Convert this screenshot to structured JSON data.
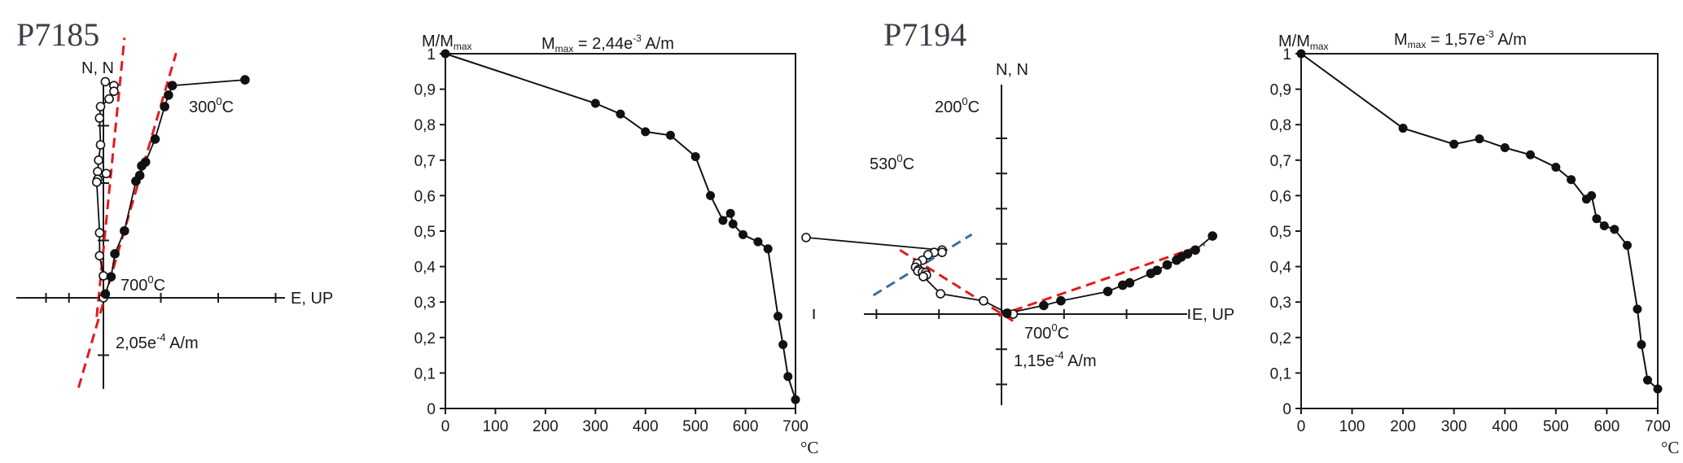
{
  "chart_data": [
    {
      "type": "scatter",
      "title": "P7185",
      "panel": "zijderveld",
      "labels": {
        "n_axis": "N, N",
        "e_axis": "E, UP",
        "temp_upper": "300",
        "temp_lower": "700",
        "temp_unit": "C",
        "degree_mark": "0",
        "scale_base": "2,05e",
        "scale_exp": "-4",
        "scale_unit": " A/m"
      },
      "series": [
        {
          "projection": "horizontal",
          "marker": "open",
          "points": [
            [
              0.1,
              11.3
            ],
            [
              0.55,
              11.1
            ],
            [
              0.55,
              10.8
            ],
            [
              0.3,
              10.4
            ],
            [
              -0.15,
              10.0
            ],
            [
              -0.2,
              9.4
            ],
            [
              -0.15,
              8.0
            ],
            [
              -0.25,
              7.2
            ],
            [
              -0.3,
              6.6
            ],
            [
              0.15,
              6.5
            ],
            [
              -0.3,
              6.2
            ],
            [
              -0.35,
              6.05
            ],
            [
              -0.2,
              3.4
            ],
            [
              -0.2,
              2.2
            ],
            [
              0.0,
              1.15
            ],
            [
              0.0,
              0.0
            ]
          ]
        },
        {
          "projection": "vertical",
          "marker": "filled",
          "points": [
            [
              7.4,
              11.4
            ],
            [
              3.6,
              11.1
            ],
            [
              3.4,
              10.6
            ],
            [
              3.2,
              10.0
            ],
            [
              2.7,
              8.3
            ],
            [
              2.2,
              7.1
            ],
            [
              2.0,
              6.9
            ],
            [
              1.9,
              6.4
            ],
            [
              1.7,
              6.1
            ],
            [
              1.1,
              3.5
            ],
            [
              0.6,
              2.3
            ],
            [
              0.4,
              1.1
            ],
            [
              0.1,
              0.2
            ]
          ]
        }
      ],
      "fit_lines": [
        {
          "color": "#e41a1c",
          "from": [
            -1.3,
            -4.7
          ],
          "to": [
            3.8,
            12.8
          ]
        },
        {
          "color": "#e41a1c",
          "from": [
            -0.35,
            -1.0
          ],
          "to": [
            1.1,
            13.6
          ]
        }
      ]
    },
    {
      "type": "line",
      "panel": "demagnetization",
      "ylabel_base": "M/M",
      "ylabel_sub": "max",
      "mmax": {
        "base": "M",
        "sub": "max",
        "eq": " = 2,44e",
        "exp": "-3",
        "unit": " A/m"
      },
      "xunit": "°C",
      "xlim": [
        0,
        700
      ],
      "ylim": [
        0,
        1
      ],
      "xticks": [
        "0",
        "100",
        "200",
        "300",
        "400",
        "500",
        "600",
        "700"
      ],
      "yticks": [
        "0",
        "0,1",
        "0,2",
        "0,3",
        "0,4",
        "0,5",
        "0,6",
        "0,7",
        "0,8",
        "0,9",
        "1"
      ],
      "x": [
        0,
        300,
        350,
        400,
        450,
        500,
        530,
        555,
        570,
        575,
        595,
        625,
        645,
        665,
        675,
        685,
        700
      ],
      "y": [
        1.0,
        0.86,
        0.83,
        0.78,
        0.77,
        0.71,
        0.6,
        0.53,
        0.55,
        0.52,
        0.49,
        0.47,
        0.45,
        0.26,
        0.18,
        0.09,
        0.025
      ]
    },
    {
      "type": "scatter",
      "title": "P7194",
      "panel": "zijderveld",
      "labels": {
        "n_axis": "N, N",
        "e_axis": "E, UP",
        "temp_upper": "200",
        "temp_mid": "530",
        "temp_lower": "700",
        "temp_unit": "C",
        "degree_mark": "0",
        "scale_base": "1,15e",
        "scale_exp": "-4",
        "scale_unit": " A/m"
      },
      "series": [
        {
          "projection": "horizontal",
          "marker": "open",
          "points": [
            [
              -12.5,
              4.9
            ],
            [
              -3.8,
              4.1
            ],
            [
              -3.8,
              3.95
            ],
            [
              -4.3,
              3.95
            ],
            [
              -4.7,
              3.8
            ],
            [
              -5.05,
              3.45
            ],
            [
              -5.4,
              3.25
            ],
            [
              -5.5,
              3.0
            ],
            [
              -5.3,
              2.85
            ],
            [
              -5.35,
              2.75
            ],
            [
              -5.05,
              2.7
            ],
            [
              -4.85,
              2.65
            ],
            [
              -4.8,
              2.5
            ],
            [
              -5.0,
              2.4
            ],
            [
              -3.9,
              1.3
            ],
            [
              -1.15,
              0.85
            ],
            [
              0.4,
              0.05
            ],
            [
              0.75,
              0.0
            ]
          ]
        },
        {
          "projection": "vertical",
          "marker": "filled",
          "points": [
            [
              13.5,
              5.0
            ],
            [
              12.4,
              4.1
            ],
            [
              11.9,
              3.85
            ],
            [
              11.5,
              3.65
            ],
            [
              11.2,
              3.45
            ],
            [
              10.6,
              3.15
            ],
            [
              9.95,
              2.8
            ],
            [
              9.55,
              2.6
            ],
            [
              8.2,
              2.0
            ],
            [
              7.75,
              1.85
            ],
            [
              6.8,
              1.45
            ],
            [
              3.8,
              0.85
            ],
            [
              2.7,
              0.55
            ],
            [
              0.35,
              0.05
            ]
          ]
        }
      ],
      "fit_lines": [
        {
          "color": "#3a6fa8",
          "from": [
            -8.2,
            1.2
          ],
          "to": [
            -1.9,
            5.1
          ]
        },
        {
          "color": "#e41a1c",
          "from": [
            -6.5,
            4.1
          ],
          "to": [
            1.0,
            -0.6
          ]
        },
        {
          "color": "#e41a1c",
          "from": [
            -0.2,
            -0.1
          ],
          "to": [
            13.0,
            4.45
          ]
        }
      ]
    },
    {
      "type": "line",
      "panel": "demagnetization",
      "ylabel_base": "M/M",
      "ylabel_sub": "max",
      "mmax": {
        "base": "M",
        "sub": "max",
        "eq": " = 1,57e",
        "exp": "-3",
        "unit": " A/m"
      },
      "xunit": "°C",
      "xlim": [
        0,
        700
      ],
      "ylim": [
        0,
        1
      ],
      "xticks": [
        "0",
        "100",
        "200",
        "300",
        "400",
        "500",
        "600",
        "700"
      ],
      "yticks": [
        "0",
        "0,1",
        "0,2",
        "0,3",
        "0,4",
        "0,5",
        "0,6",
        "0,7",
        "0,8",
        "0,9",
        "1"
      ],
      "x": [
        0,
        200,
        300,
        350,
        400,
        450,
        500,
        530,
        560,
        570,
        580,
        595,
        615,
        640,
        660,
        668,
        680,
        700
      ],
      "y": [
        1.0,
        0.79,
        0.745,
        0.76,
        0.735,
        0.715,
        0.68,
        0.645,
        0.59,
        0.6,
        0.535,
        0.515,
        0.505,
        0.46,
        0.28,
        0.18,
        0.08,
        0.055
      ]
    }
  ]
}
